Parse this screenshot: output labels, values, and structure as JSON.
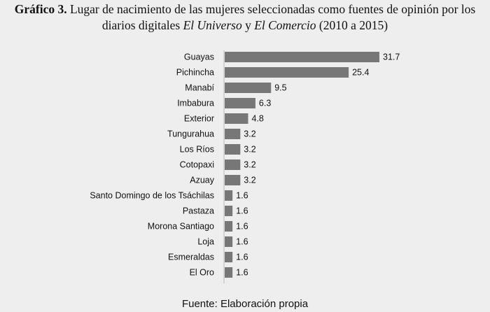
{
  "title": {
    "label": "Gráfico 3.",
    "line1": "Lugar de nacimiento de las mujeres seleccionadas como fuentes de opinión por los",
    "line2_pre": "diarios digitales ",
    "medio1": "El Universo",
    "conj": " y ",
    "medio2": "El Comercio",
    "line2_post": " (2010 a 2015)"
  },
  "chart_data": {
    "type": "bar",
    "orientation": "horizontal",
    "categories": [
      "Guayas",
      "Pichincha",
      "Manabí",
      "Imbabura",
      "Exterior",
      "Tungurahua",
      "Los Ríos",
      "Cotopaxi",
      "Azuay",
      "Santo Domingo de los  Tsáchilas",
      "Pastaza",
      "Morona Santiago",
      "Loja",
      "Esmeraldas",
      "El Oro"
    ],
    "values": [
      31.7,
      25.4,
      9.5,
      6.3,
      4.8,
      3.2,
      3.2,
      3.2,
      3.2,
      1.6,
      1.6,
      1.6,
      1.6,
      1.6,
      1.6
    ],
    "value_labels": [
      "31.7",
      "25.4",
      "9.5",
      "6.3",
      "4.8",
      "3.2",
      "3.2",
      "3.2",
      "3.2",
      "1.6",
      "1.6",
      "1.6",
      "1.6",
      "1.6",
      "1.6"
    ],
    "xlim": [
      0,
      31.7
    ],
    "grid": false,
    "bar_color": "#777777",
    "axis_color": "#bbbbbb"
  },
  "footer": "Fuente: Elaboración propia"
}
